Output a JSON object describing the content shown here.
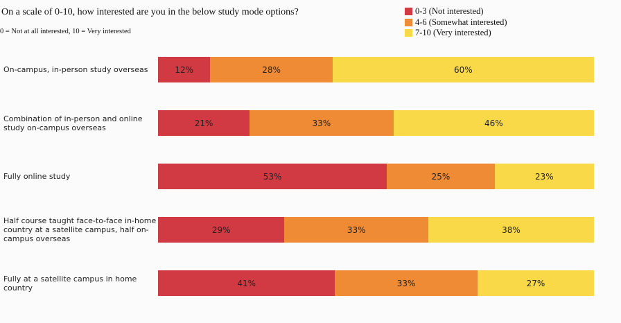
{
  "chart_data": {
    "type": "bar",
    "orientation": "horizontal",
    "stacked": true,
    "title": "On a scale of 0-10, how interested are you in the below study mode options?",
    "subtitle": "0 = Not at all interested, 10 = Very interested",
    "categories": [
      "On-campus, in-person study overseas",
      "Combination of in-person and online study on-campus overseas",
      "Fully online study",
      "Half course taught face-to-face in-home country at a satellite campus, half on-campus overseas",
      "Fully at a satellite campus in home country"
    ],
    "series": [
      {
        "name": "0-3 (Not interested)",
        "color": "#d13a43",
        "values": [
          12,
          21,
          53,
          29,
          41
        ]
      },
      {
        "name": "4-6 (Somewhat interested)",
        "color": "#ee8b34",
        "values": [
          28,
          33,
          25,
          33,
          33
        ]
      },
      {
        "name": "7-10 (Very interested)",
        "color": "#f9d948",
        "values": [
          60,
          46,
          23,
          38,
          27
        ]
      }
    ],
    "data_labels": [
      [
        "12%",
        "28%",
        "60%"
      ],
      [
        "21%",
        "33%",
        "46%"
      ],
      [
        "53%",
        "25%",
        "23%"
      ],
      [
        "29%",
        "33%",
        "38%"
      ],
      [
        "41%",
        "33%",
        "27%"
      ]
    ],
    "legend_position": "top-right",
    "unit": "%"
  }
}
